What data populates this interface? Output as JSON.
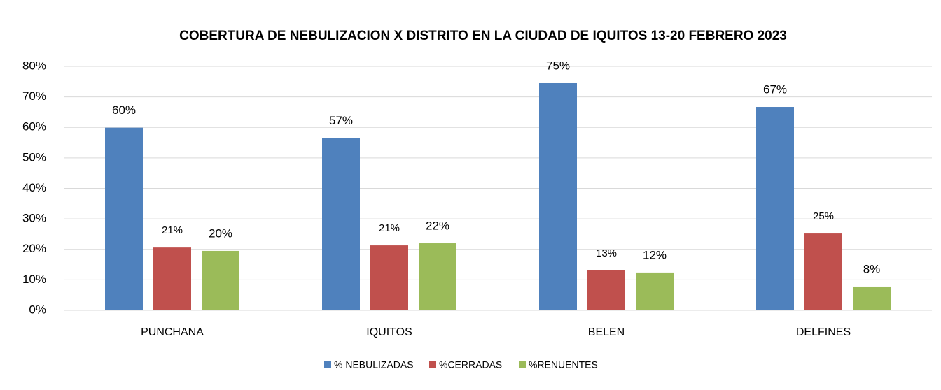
{
  "chart_data": {
    "type": "bar",
    "title": "COBERTURA DE NEBULIZACION X DISTRITO EN LA CIUDAD DE IQUITOS 13-20 FEBRERO 2023",
    "categories": [
      "PUNCHANA",
      "IQUITOS",
      "BELEN",
      "DELFINES"
    ],
    "series": [
      {
        "name": "% NEBULIZADAS",
        "color": "#4f81bd",
        "values": [
          59.9,
          56.5,
          74.5,
          66.7
        ],
        "value_labels": [
          "60%",
          "57%",
          "75%",
          "67%"
        ]
      },
      {
        "name": "%CERRADAS",
        "color": "#c0504d",
        "values": [
          20.6,
          21.3,
          13.1,
          25.2
        ],
        "value_labels": [
          "21%",
          "21%",
          "13%",
          "25%"
        ]
      },
      {
        "name": "%RENUENTES",
        "color": "#9bbb59",
        "values": [
          19.5,
          22.0,
          12.4,
          7.8
        ],
        "value_labels": [
          "20%",
          "22%",
          "12%",
          "8%"
        ]
      }
    ],
    "ylim": [
      0,
      80
    ],
    "yticks": [
      {
        "value": 0,
        "label": "0%"
      },
      {
        "value": 10,
        "label": "10%"
      },
      {
        "value": 20,
        "label": "20%"
      },
      {
        "value": 30,
        "label": "30%"
      },
      {
        "value": 40,
        "label": "40%"
      },
      {
        "value": 50,
        "label": "50%"
      },
      {
        "value": 60,
        "label": "60%"
      },
      {
        "value": 70,
        "label": "70%"
      },
      {
        "value": 80,
        "label": "80%"
      }
    ],
    "grid": true,
    "legend": "bottom"
  }
}
